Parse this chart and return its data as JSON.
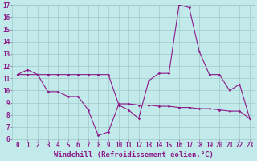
{
  "x": [
    0,
    1,
    2,
    3,
    4,
    5,
    6,
    7,
    8,
    9,
    10,
    11,
    12,
    13,
    14,
    15,
    16,
    17,
    18,
    19,
    20,
    21,
    22,
    23
  ],
  "y_main": [
    11.3,
    11.7,
    11.3,
    9.9,
    9.9,
    9.5,
    9.5,
    8.4,
    6.3,
    6.6,
    8.8,
    8.4,
    7.7,
    10.8,
    11.4,
    11.4,
    17.0,
    16.8,
    13.2,
    11.3,
    11.3,
    10.0,
    10.5,
    7.7
  ],
  "y_ref": [
    11.3,
    11.3,
    11.3,
    11.3,
    11.3,
    11.3,
    11.3,
    11.3,
    11.3,
    11.3,
    8.9,
    8.9,
    8.8,
    8.8,
    8.7,
    8.7,
    8.6,
    8.6,
    8.5,
    8.5,
    8.4,
    8.3,
    8.3,
    7.7
  ],
  "line_color": "#8b1a8b",
  "bg_color": "#c2eaea",
  "grid_color": "#a0c8c8",
  "text_color": "#8b1a8b",
  "xlabel": "Windchill (Refroidissement éolien,°C)",
  "ylim_min": 6,
  "ylim_max": 17,
  "yticks": [
    6,
    7,
    8,
    9,
    10,
    11,
    12,
    13,
    14,
    15,
    16,
    17
  ],
  "xticks": [
    0,
    1,
    2,
    3,
    4,
    5,
    6,
    7,
    8,
    9,
    10,
    11,
    12,
    13,
    14,
    15,
    16,
    17,
    18,
    19,
    20,
    21,
    22,
    23
  ],
  "tick_fontsize": 5.5,
  "xlabel_fontsize": 6.5
}
